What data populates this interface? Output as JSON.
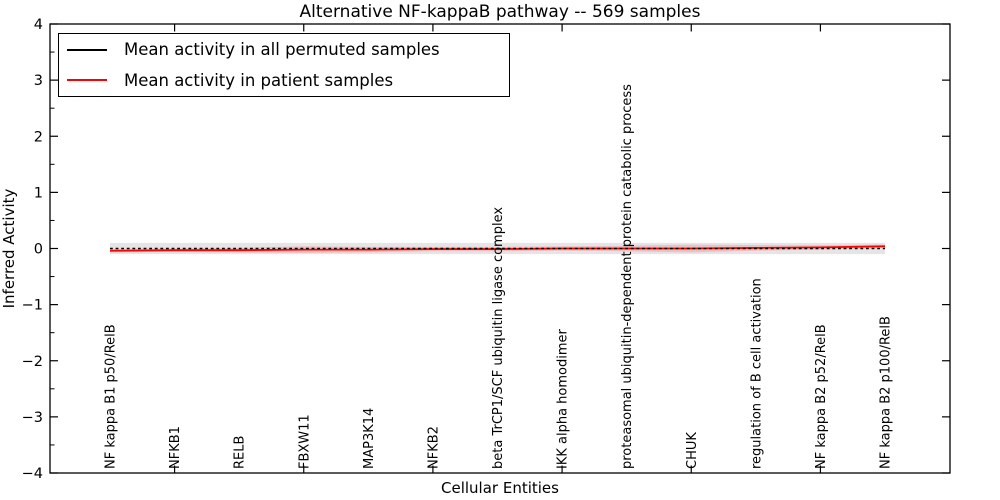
{
  "chart_data": {
    "type": "line",
    "title": "Alternative NF-kappaB pathway -- 569 samples",
    "xlabel": "Cellular Entities",
    "ylabel": "Inferred Activity",
    "ylim": [
      -4,
      4
    ],
    "y_major_ticks": [
      4,
      3,
      2,
      1,
      0,
      -1,
      -2,
      -3,
      -4
    ],
    "y_minor_tick_step": 0.5,
    "grid": false,
    "legend_position": "upper left",
    "categories": [
      "NF kappa B1 p50/RelB",
      "NFKB1",
      "RELB",
      "FBXW11",
      "MAP3K14",
      "NFKB2",
      "beta TrCP1/SCF ubiquitin ligase complex",
      "IKK alpha homodimer",
      "proteasomal ubiquitin-dependent protein catabolic process",
      "CHUK",
      "regulation of B cell activation",
      "NF kappa B2 p52/RelB",
      "NF kappa B2 p100/RelB"
    ],
    "x_axis_tick_indices": [
      1,
      3,
      5,
      7,
      9,
      11
    ],
    "series": [
      {
        "name": "Mean activity in all permuted samples",
        "color": "#000000",
        "line_style": "dashed",
        "values": [
          0,
          0,
          0,
          0,
          0,
          0,
          0,
          0,
          0,
          0,
          0,
          0,
          0
        ],
        "band": {
          "color": "rgba(0,0,0,0.10)",
          "half_widths": [
            0.1,
            0.1,
            0.1,
            0.1,
            0.1,
            0.1,
            0.1,
            0.1,
            0.1,
            0.1,
            0.1,
            0.1,
            0.1
          ]
        }
      },
      {
        "name": "Mean activity in patient samples",
        "color": "#ff0000",
        "line_style": "solid",
        "values": [
          -0.04,
          -0.03,
          -0.03,
          -0.02,
          -0.02,
          -0.01,
          -0.01,
          0.0,
          0.0,
          0.0,
          0.01,
          0.02,
          0.04
        ],
        "band": {
          "color": "rgba(255,0,0,0.15)",
          "half_widths": [
            0.03,
            0.03,
            0.04,
            0.06,
            0.05,
            0.04,
            0.04,
            0.04,
            0.05,
            0.07,
            0.05,
            0.04,
            0.03
          ]
        }
      }
    ]
  }
}
